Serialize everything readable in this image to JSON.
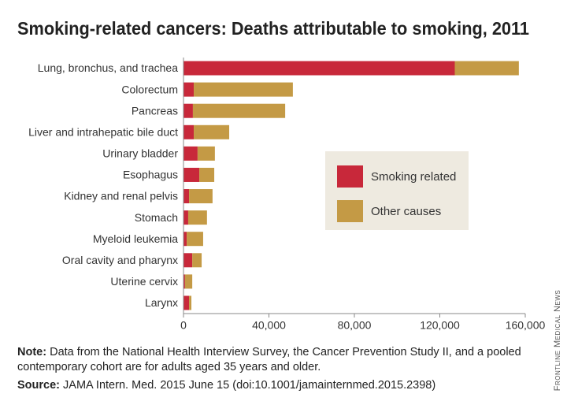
{
  "chart_data": {
    "type": "stacked-barh",
    "title": "Smoking-related cancers: Deaths attributable to smoking, 2011",
    "categories": [
      "Lung, bronchus, and trachea",
      "Colorectum",
      "Pancreas",
      "Liver and intrahepatic bile duct",
      "Urinary bladder",
      "Esophagus",
      "Kidney and renal pelvis",
      "Stomach",
      "Myeloid leukemia",
      "Oral cavity and pharynx",
      "Uterine cervix",
      "Larynx"
    ],
    "series": [
      {
        "name": "Smoking related",
        "color": "#c8283a",
        "values": [
          127000,
          4800,
          4400,
          4800,
          6600,
          7400,
          2600,
          2200,
          1500,
          4100,
          700,
          2600
        ]
      },
      {
        "name": "Other causes",
        "color": "#c49a45",
        "values": [
          30000,
          46400,
          43200,
          16600,
          8100,
          7000,
          11000,
          8800,
          7700,
          4400,
          3400,
          1100
        ]
      }
    ],
    "xlim": [
      0,
      160000
    ],
    "xticks": [
      0,
      {
        "value": 40000,
        "label": "40,000"
      },
      {
        "value": 80000,
        "label": "80,000"
      },
      {
        "value": 120000,
        "label": "120,000"
      },
      {
        "value": 160000,
        "label": "160,000"
      }
    ],
    "legend": "center-right",
    "note": {
      "label": "Note:",
      "text": "Data from the National Health Interview Survey, the Cancer Prevention Study II, and a pooled contemporary cohort are for adults aged 35 years and older."
    },
    "source": {
      "label": "Source:",
      "text": "JAMA Intern. Med. 2015 June 15 (doi:10.1001/jamainternmed.2015.2398)"
    },
    "credit": "Frontline Medical News"
  }
}
